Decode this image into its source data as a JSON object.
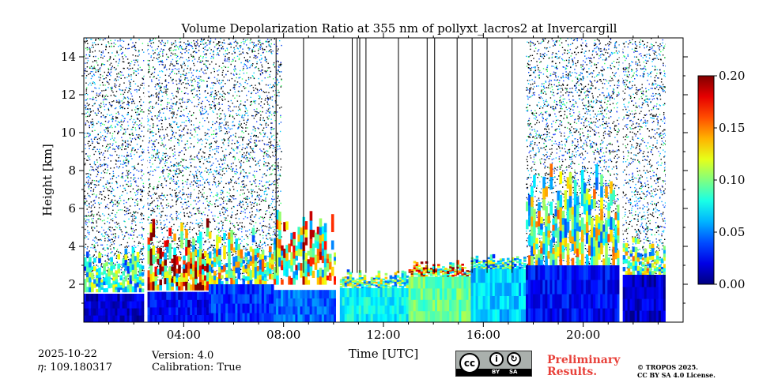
{
  "chart_data": {
    "type": "heatmap",
    "title": "Volume Depolarization Ratio at 355 nm of pollyxt_lacros2 at Invercargill",
    "xlabel": "Time [UTC]",
    "ylabel": "Height [km]",
    "xlim_hours": [
      0,
      24
    ],
    "ylim_km": [
      0,
      15
    ],
    "x_tick_labels": [
      "04:00",
      "08:00",
      "12:00",
      "16:00",
      "20:00"
    ],
    "x_tick_hours": [
      4,
      8,
      12,
      16,
      20
    ],
    "y_ticks": [
      2,
      4,
      6,
      8,
      10,
      12,
      14
    ],
    "colorbar": {
      "vmin": 0.0,
      "vmax": 0.2,
      "ticks": [
        "0.00",
        "0.05",
        "0.10",
        "0.15",
        "0.20"
      ],
      "tick_values": [
        0.0,
        0.05,
        0.1,
        0.15,
        0.2
      ],
      "colormap": "jet"
    },
    "data_gaps_hours": [
      [
        2.42,
        2.55
      ],
      [
        10.1,
        10.25
      ],
      [
        21.45,
        21.58
      ]
    ],
    "profile_lines_hours": [
      7.7,
      8.8,
      10.75,
      10.95,
      11.05,
      11.3,
      12.6,
      13.75,
      14.05,
      14.95,
      15.55,
      16.15,
      17.15
    ],
    "noisy_periods_hours": [
      [
        0.0,
        7.9
      ],
      [
        17.7,
        23.3
      ]
    ],
    "data_end_hour": 23.3,
    "segments": [
      {
        "t0": 0.0,
        "t1": 2.4,
        "base_top_km": 1.5,
        "base_dep": 0.0,
        "layer_km": [
          1.6,
          4.0
        ],
        "layer_dep": 0.08
      },
      {
        "t0": 2.55,
        "t1": 5.0,
        "base_top_km": 1.6,
        "base_dep": 0.01,
        "layer_km": [
          1.7,
          5.5
        ],
        "layer_dep": 0.14
      },
      {
        "t0": 5.0,
        "t1": 7.6,
        "base_top_km": 2.0,
        "base_dep": 0.02,
        "layer_km": [
          2.0,
          5.0
        ],
        "layer_dep": 0.1
      },
      {
        "t0": 7.6,
        "t1": 10.1,
        "base_top_km": 1.7,
        "base_dep": 0.03,
        "layer_km": [
          2.0,
          6.0
        ],
        "layer_dep": 0.12
      },
      {
        "t0": 10.25,
        "t1": 13.0,
        "base_top_km": 1.8,
        "base_dep": 0.06,
        "layer_km": [
          1.8,
          2.8
        ],
        "layer_dep": 0.09
      },
      {
        "t0": 13.0,
        "t1": 15.5,
        "base_top_km": 2.4,
        "base_dep": 0.08,
        "layer_km": [
          2.4,
          3.3
        ],
        "layer_dep": 0.14
      },
      {
        "t0": 15.5,
        "t1": 17.7,
        "base_top_km": 2.8,
        "base_dep": 0.05,
        "layer_km": [
          2.8,
          3.6
        ],
        "layer_dep": 0.08
      },
      {
        "t0": 17.7,
        "t1": 21.45,
        "base_top_km": 3.0,
        "base_dep": 0.01,
        "layer_km": [
          3.0,
          8.5
        ],
        "layer_dep": 0.1
      },
      {
        "t0": 21.58,
        "t1": 23.3,
        "base_top_km": 2.5,
        "base_dep": 0.0,
        "layer_km": [
          2.5,
          4.5
        ],
        "layer_dep": 0.1
      }
    ]
  },
  "info": {
    "date": "2025-10-22",
    "eta": "𝜂: 109.180317",
    "version": "Version: 4.0",
    "calibration": "Calibration: True"
  },
  "branding": {
    "preliminary_line1": "Preliminary",
    "preliminary_line2": "Results.",
    "copyright_line1": "© TROPOS 2025.",
    "copyright_line2": "CC BY SA 4.0 License.",
    "cc_text": "cc",
    "by_text": "BY",
    "sa_text": "SA"
  },
  "colors": {
    "preliminary": "#e8413a",
    "background": "#ffffff"
  }
}
